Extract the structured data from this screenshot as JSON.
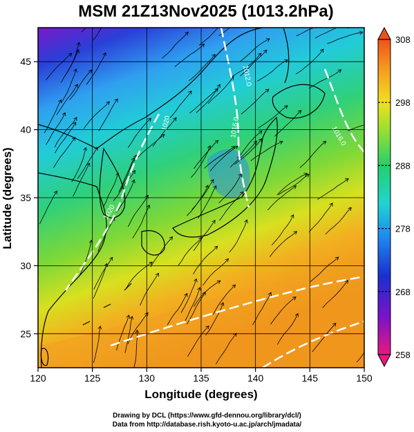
{
  "title": "MSM 21Z13Nov2025 (1013.2hPa)",
  "map": {
    "xlabel": "Longitude (degrees)",
    "ylabel": "Latitude  (degrees)",
    "lon_range": [
      120,
      150
    ],
    "lat_range": [
      22.5,
      47.5
    ],
    "lon_ticks": [
      "120",
      "125",
      "130",
      "135",
      "140",
      "145",
      "150"
    ],
    "lat_ticks": [
      "25",
      "30",
      "35",
      "40",
      "45"
    ],
    "grid": true,
    "field": "temperature with wind streamlines",
    "contour_labels": [
      "1012.0",
      "1020",
      "1016.0",
      "1020",
      "1016.0"
    ]
  },
  "colorbar": {
    "range": [
      258,
      308
    ],
    "ticks": [
      "308",
      "298",
      "288",
      "278",
      "268",
      "258"
    ],
    "colors": [
      "#e8187f",
      "#7a12c8",
      "#1a2fd0",
      "#1e8ff0",
      "#21d4d0",
      "#23d06a",
      "#9fe030",
      "#f0e020",
      "#f5a020",
      "#f0501a"
    ]
  },
  "credits": {
    "line1": "Drawing by DCL (https://www.gfd-dennou.org/library/dcl/)",
    "line2": "Data from http://database.rish.kyoto-u.ac.jp/arch/jmadata/"
  },
  "colors": {
    "land_outline": "#000000",
    "contour": "#ffffff",
    "streamline": "#000000"
  }
}
